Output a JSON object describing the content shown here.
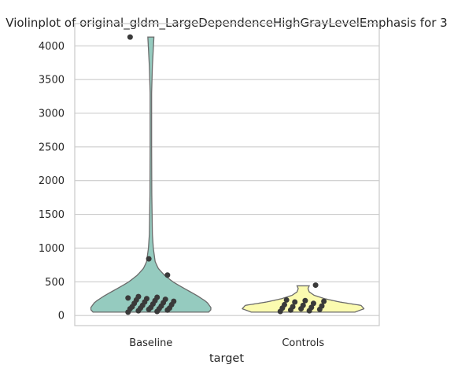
{
  "chart_data": {
    "type": "violin",
    "title": "Violinplot of original_gldm_LargeDependenceHighGrayLevelEmphasis for 3",
    "xlabel": "target",
    "ylabel": "",
    "ylim": [
      -150,
      4330
    ],
    "yticks": [
      0,
      500,
      1000,
      1500,
      2000,
      2500,
      3000,
      3500,
      4000
    ],
    "grid": true,
    "categories": [
      "Baseline",
      "Controls"
    ],
    "colors": {
      "Baseline": "#95cbbf",
      "Controls": "#fbfbb0",
      "points": "#3a3a3a",
      "outline": "#6b6b6b",
      "grid": "#cccccc",
      "frame": "#cccccc"
    },
    "violins": [
      {
        "category": "Baseline",
        "cut_min": 50,
        "cut_max": 4130,
        "profile": [
          [
            50,
            0.95
          ],
          [
            100,
            1.0
          ],
          [
            200,
            0.92
          ],
          [
            300,
            0.75
          ],
          [
            400,
            0.55
          ],
          [
            500,
            0.36
          ],
          [
            600,
            0.22
          ],
          [
            700,
            0.12
          ],
          [
            800,
            0.07
          ],
          [
            1000,
            0.04
          ],
          [
            1200,
            0.025
          ],
          [
            1500,
            0.02
          ],
          [
            1800,
            0.015
          ],
          [
            2500,
            0.012
          ],
          [
            3300,
            0.012
          ],
          [
            3700,
            0.025
          ],
          [
            4130,
            0.05
          ]
        ],
        "points": [
          50,
          60,
          70,
          80,
          90,
          100,
          100,
          110,
          110,
          120,
          130,
          140,
          150,
          160,
          170,
          180,
          190,
          200,
          210,
          220,
          230,
          240,
          250,
          260,
          270,
          280,
          600,
          840,
          4130
        ]
      },
      {
        "category": "Controls",
        "cut_min": 50,
        "cut_max": 440,
        "profile": [
          [
            50,
            0.85
          ],
          [
            100,
            1.0
          ],
          [
            150,
            0.95
          ],
          [
            200,
            0.6
          ],
          [
            250,
            0.35
          ],
          [
            300,
            0.18
          ],
          [
            350,
            0.1
          ],
          [
            400,
            0.08
          ],
          [
            440,
            0.1
          ]
        ],
        "points": [
          60,
          70,
          80,
          90,
          100,
          110,
          120,
          130,
          140,
          150,
          160,
          180,
          200,
          210,
          220,
          230,
          450
        ]
      }
    ]
  }
}
